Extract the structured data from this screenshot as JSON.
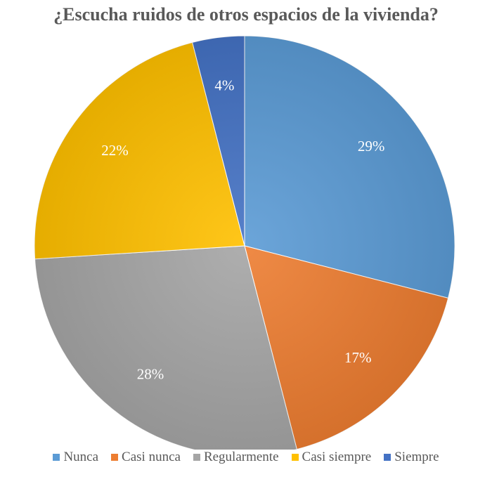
{
  "chart_data": {
    "type": "pie",
    "title": "¿Escucha ruidos de otros espacios de la vivienda?",
    "categories": [
      "Nunca",
      "Casi nunca",
      "Regularmente",
      "Casi siempre",
      "Siempre"
    ],
    "values": [
      29,
      17,
      28,
      22,
      4
    ],
    "labels": [
      "29%",
      "17%",
      "28%",
      "22%",
      "4%"
    ],
    "colors": [
      "#5B9BD5",
      "#ED7D31",
      "#A5A5A5",
      "#FFC000",
      "#4472C4"
    ],
    "start_angle": "12 o'clock",
    "direction": "clockwise",
    "legend": "bottom"
  }
}
